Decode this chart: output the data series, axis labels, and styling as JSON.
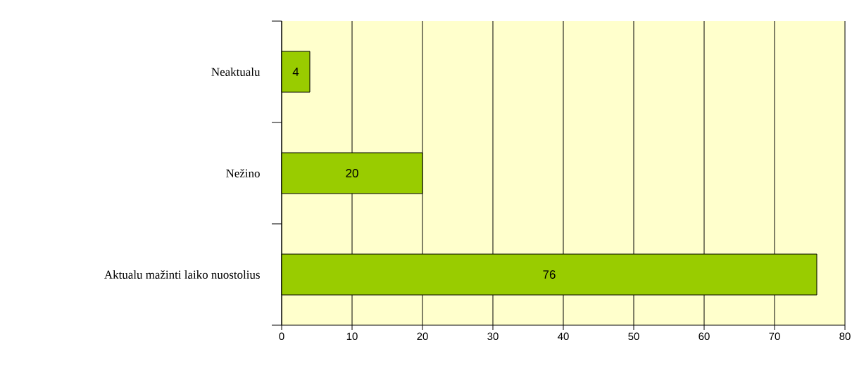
{
  "chart_data": {
    "type": "bar",
    "orientation": "horizontal",
    "categories": [
      "Neaktualu",
      "Nežino",
      "Aktualu  mažinti laiko nuostolius"
    ],
    "values": [
      4,
      20,
      76
    ],
    "color": "#99cc00",
    "xlim": [
      0,
      80
    ],
    "xticks": [
      0,
      10,
      20,
      30,
      40,
      50,
      60,
      70,
      80
    ],
    "grid": "x",
    "data_labels": true
  }
}
